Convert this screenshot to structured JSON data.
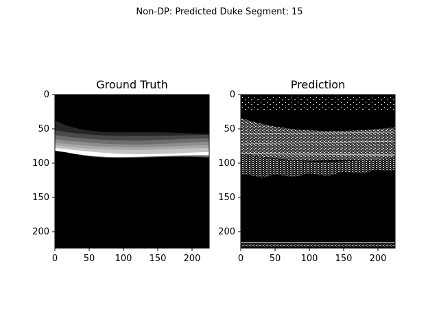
{
  "figure": {
    "suptitle": "Non-DP: Predicted Duke Segment: 15"
  },
  "panels": [
    {
      "title": "Ground Truth",
      "xticks": [
        "0",
        "50",
        "100",
        "150",
        "200"
      ],
      "yticks": [
        "0",
        "50",
        "100",
        "150",
        "200"
      ]
    },
    {
      "title": "Prediction",
      "xticks": [
        "0",
        "50",
        "100",
        "150",
        "200"
      ],
      "yticks": [
        "0",
        "50",
        "100",
        "150",
        "200"
      ]
    }
  ],
  "image_extent": {
    "width": 224,
    "height": 224
  }
}
